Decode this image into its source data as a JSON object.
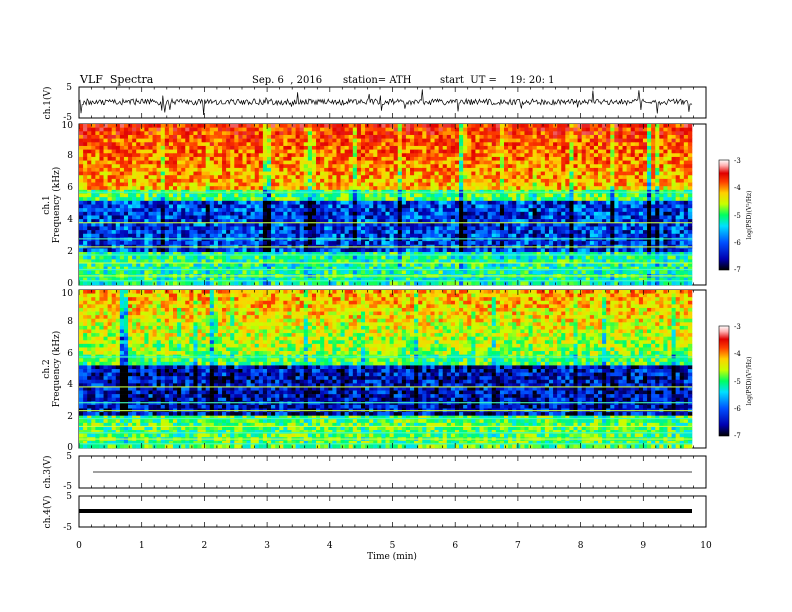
{
  "header": {
    "title": "VLF  Spectra",
    "date": "Sep. 6  , 2016",
    "station": "station= ATH",
    "start": "start  UT =    19: 20: 1"
  },
  "chart_data": [
    {
      "type": "line",
      "panel": "ch1-waveform",
      "ylabel": "ch.1(V)",
      "ylim": [
        -5,
        5
      ],
      "yticks": [
        "5",
        "-5"
      ],
      "xlim": [
        0,
        10
      ]
    },
    {
      "type": "heatmap",
      "panel": "ch1-spectrogram",
      "ylabel": "ch.1\nFrequency (kHz)",
      "ylabel_lines": [
        "ch.1",
        "Frequency  (kHz)"
      ],
      "ylim": [
        0,
        10
      ],
      "yticks": [
        "0",
        "2",
        "4",
        "6",
        "8",
        "10"
      ],
      "xlim": [
        0,
        9.8
      ],
      "colorbar": {
        "label": "log(PSD)(V²/Hz)",
        "range": [
          -7,
          -3
        ],
        "ticks": [
          "-3",
          "-4",
          "-5",
          "-6",
          "-7"
        ],
        "colors": [
          "#000000",
          "#0000b0",
          "#0050ff",
          "#00e0ff",
          "#00ff60",
          "#c8ff00",
          "#ffd000",
          "#ff4000",
          "#e00000",
          "#ffb0b0",
          "#ffffff"
        ]
      },
      "description_values": {
        "noise_floor_band_khz": [
          2.0,
          5.5
        ],
        "lower_band_khz": [
          0.2,
          2.0
        ],
        "upper_band_khz": [
          6.0,
          10.0
        ],
        "upper_band_level": -4.3,
        "mid_band_level": -6.3,
        "lower_band_level": -5.5
      }
    },
    {
      "type": "heatmap",
      "panel": "ch2-spectrogram",
      "ylabel_lines": [
        "ch.2",
        "Frequency  (kHz)"
      ],
      "ylim": [
        0,
        10
      ],
      "yticks": [
        "0",
        "2",
        "4",
        "6",
        "8",
        "10"
      ],
      "xlim": [
        0,
        9.8
      ],
      "colorbar": {
        "label": "log(PSD)(V²/Hz)",
        "range": [
          -7,
          -3
        ],
        "ticks": [
          "-3",
          "-4",
          "-5",
          "-6",
          "-7"
        ]
      },
      "description_values": {
        "upper_band_level": -4.8,
        "mid_band_level": -6.5,
        "lower_band_level": -5.3
      }
    },
    {
      "type": "line",
      "panel": "ch3-waveform",
      "ylabel": "ch.3(V)",
      "ylim": [
        -5,
        5
      ],
      "yticks": [
        "5",
        "-5"
      ],
      "flat_value": 0
    },
    {
      "type": "line",
      "panel": "ch4-waveform",
      "ylabel": "ch.4(V)",
      "ylim": [
        -5,
        5
      ],
      "yticks": [
        "5",
        "-5"
      ],
      "flat_value": 0
    }
  ],
  "xaxis": {
    "label": "Time  (min)",
    "ticks": [
      "0",
      "1",
      "2",
      "3",
      "4",
      "5",
      "6",
      "7",
      "8",
      "9",
      "10"
    ],
    "range": [
      0,
      10
    ]
  }
}
